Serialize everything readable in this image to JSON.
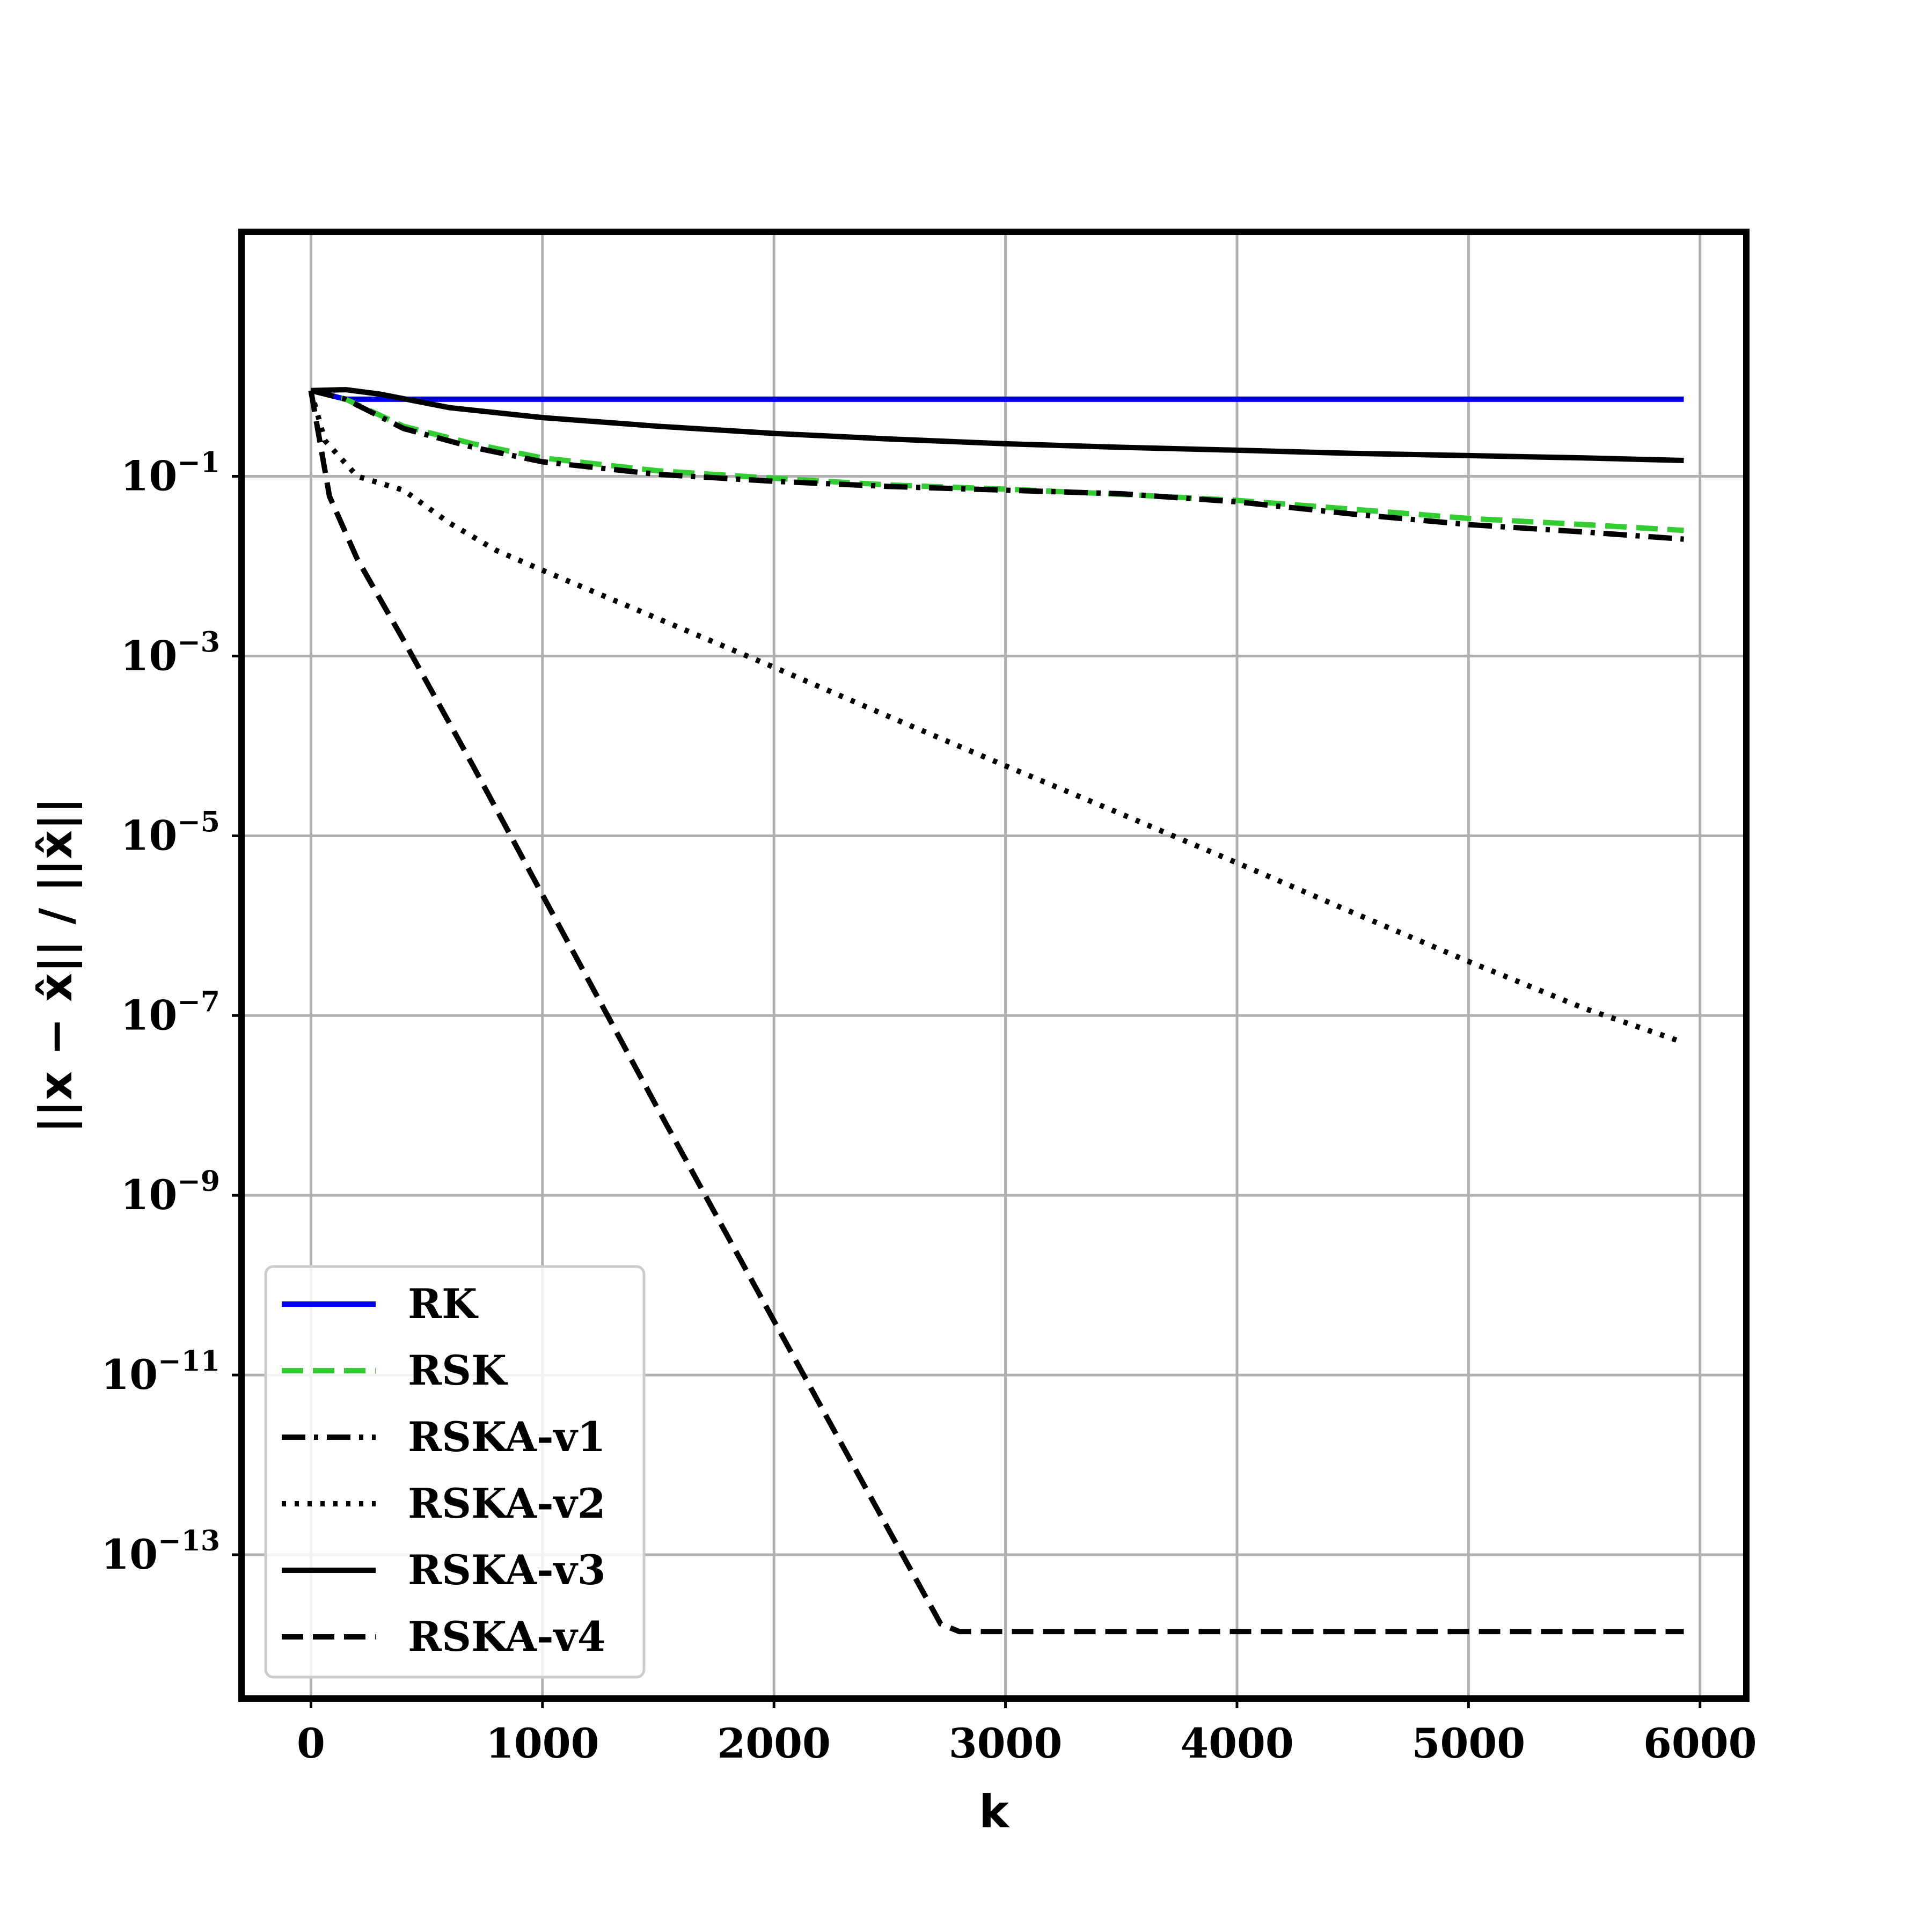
{
  "chart_data": {
    "type": "line",
    "title": "",
    "xlabel": "k",
    "ylabel": "||x − x̂|| / ||x̂||",
    "xlim": [
      -300,
      6200
    ],
    "ylim_log10": [
      -14.6,
      1.72
    ],
    "yscale": "log",
    "grid": true,
    "legend_position": "lower-left",
    "x_ticks": [
      "0",
      "1000",
      "2000",
      "3000",
      "4000",
      "5000",
      "6000"
    ],
    "y_ticks": [
      {
        "base": "10",
        "exp": "−1"
      },
      {
        "base": "10",
        "exp": "−3"
      },
      {
        "base": "10",
        "exp": "−5"
      },
      {
        "base": "10",
        "exp": "−7"
      },
      {
        "base": "10",
        "exp": "−9"
      },
      {
        "base": "10",
        "exp": "−11"
      },
      {
        "base": "10",
        "exp": "−13"
      }
    ],
    "series": [
      {
        "name": "RK",
        "color": "#0000ee",
        "dash": "solid",
        "points": [
          [
            0,
            0.9
          ],
          [
            150,
            0.72
          ],
          [
            5930,
            0.72
          ]
        ]
      },
      {
        "name": "RSK",
        "color": "#33cc33",
        "dash": "dashed",
        "points": [
          [
            0,
            0.9
          ],
          [
            150,
            0.72
          ],
          [
            400,
            0.36
          ],
          [
            700,
            0.23
          ],
          [
            1000,
            0.16
          ],
          [
            1500,
            0.115
          ],
          [
            2000,
            0.095
          ],
          [
            2500,
            0.08
          ],
          [
            3000,
            0.072
          ],
          [
            3500,
            0.063
          ],
          [
            4000,
            0.054
          ],
          [
            4500,
            0.043
          ],
          [
            5000,
            0.034
          ],
          [
            5500,
            0.029
          ],
          [
            5930,
            0.025
          ]
        ]
      },
      {
        "name": "RSKA-v1",
        "color": "#000000",
        "dash": "dashdot",
        "points": [
          [
            0,
            0.9
          ],
          [
            150,
            0.72
          ],
          [
            400,
            0.34
          ],
          [
            700,
            0.21
          ],
          [
            1000,
            0.145
          ],
          [
            1500,
            0.105
          ],
          [
            2000,
            0.088
          ],
          [
            2500,
            0.077
          ],
          [
            3000,
            0.07
          ],
          [
            3500,
            0.064
          ],
          [
            4000,
            0.052
          ],
          [
            4500,
            0.038
          ],
          [
            5000,
            0.029
          ],
          [
            5500,
            0.024
          ],
          [
            5930,
            0.02
          ]
        ]
      },
      {
        "name": "RSKA-v2",
        "color": "#000000",
        "dash": "dotted",
        "points": [
          [
            0,
            0.9
          ],
          [
            60,
            0.25
          ],
          [
            200,
            0.1
          ],
          [
            400,
            0.07
          ],
          [
            600,
            0.03
          ],
          [
            800,
            0.015
          ],
          [
            1000,
            0.009
          ],
          [
            1500,
            0.0026
          ],
          [
            2000,
            0.00075
          ],
          [
            2500,
            0.00021
          ],
          [
            3000,
            6e-05
          ],
          [
            3500,
            1.75e-05
          ],
          [
            4000,
            5e-06
          ],
          [
            4500,
            1.4e-06
          ],
          [
            5000,
            4e-07
          ],
          [
            5500,
            1.2e-07
          ],
          [
            5930,
            5e-08
          ]
        ]
      },
      {
        "name": "RSKA-v3",
        "color": "#000000",
        "dash": "solid",
        "points": [
          [
            0,
            0.9
          ],
          [
            150,
            0.92
          ],
          [
            300,
            0.82
          ],
          [
            600,
            0.58
          ],
          [
            1000,
            0.45
          ],
          [
            1500,
            0.36
          ],
          [
            2000,
            0.3
          ],
          [
            2500,
            0.26
          ],
          [
            3000,
            0.23
          ],
          [
            3500,
            0.21
          ],
          [
            4000,
            0.195
          ],
          [
            4500,
            0.18
          ],
          [
            5000,
            0.17
          ],
          [
            5500,
            0.16
          ],
          [
            5930,
            0.15
          ]
        ]
      },
      {
        "name": "RSKA-v4",
        "color": "#000000",
        "dash": "dashed",
        "points": [
          [
            0,
            0.9
          ],
          [
            80,
            0.06
          ],
          [
            200,
            0.012
          ],
          [
            400,
            0.0015
          ],
          [
            700,
            6e-05
          ],
          [
            1000,
            2.2e-06
          ],
          [
            1500,
            9e-09
          ],
          [
            2000,
            4e-11
          ],
          [
            2500,
            1.8e-13
          ],
          [
            2720,
            1.7e-14
          ],
          [
            2800,
            1.4e-14
          ],
          [
            5930,
            1.4e-14
          ]
        ]
      }
    ]
  }
}
